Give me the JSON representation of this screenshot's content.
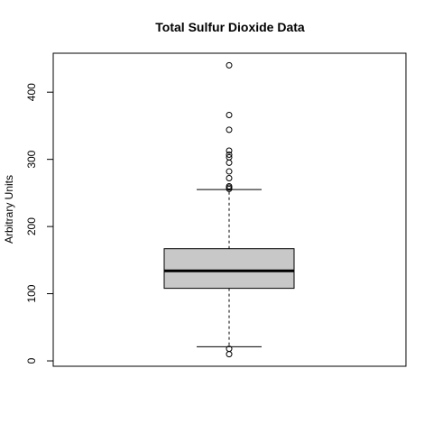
{
  "chart_data": {
    "type": "box",
    "title": "Total Sulfur Dioxide Data",
    "xlabel": "",
    "ylabel": "Arbitrary Units",
    "ylim": [
      -8,
      458
    ],
    "yticks": [
      0,
      100,
      200,
      300,
      400
    ],
    "box": {
      "whisker_low": 21,
      "q1": 108,
      "median": 134,
      "q3": 167,
      "whisker_high": 255,
      "fill": "#c8c8c8"
    },
    "outliers": [
      440,
      366,
      344,
      313,
      307,
      303,
      295,
      282,
      272,
      260,
      258,
      256,
      18,
      10
    ]
  }
}
